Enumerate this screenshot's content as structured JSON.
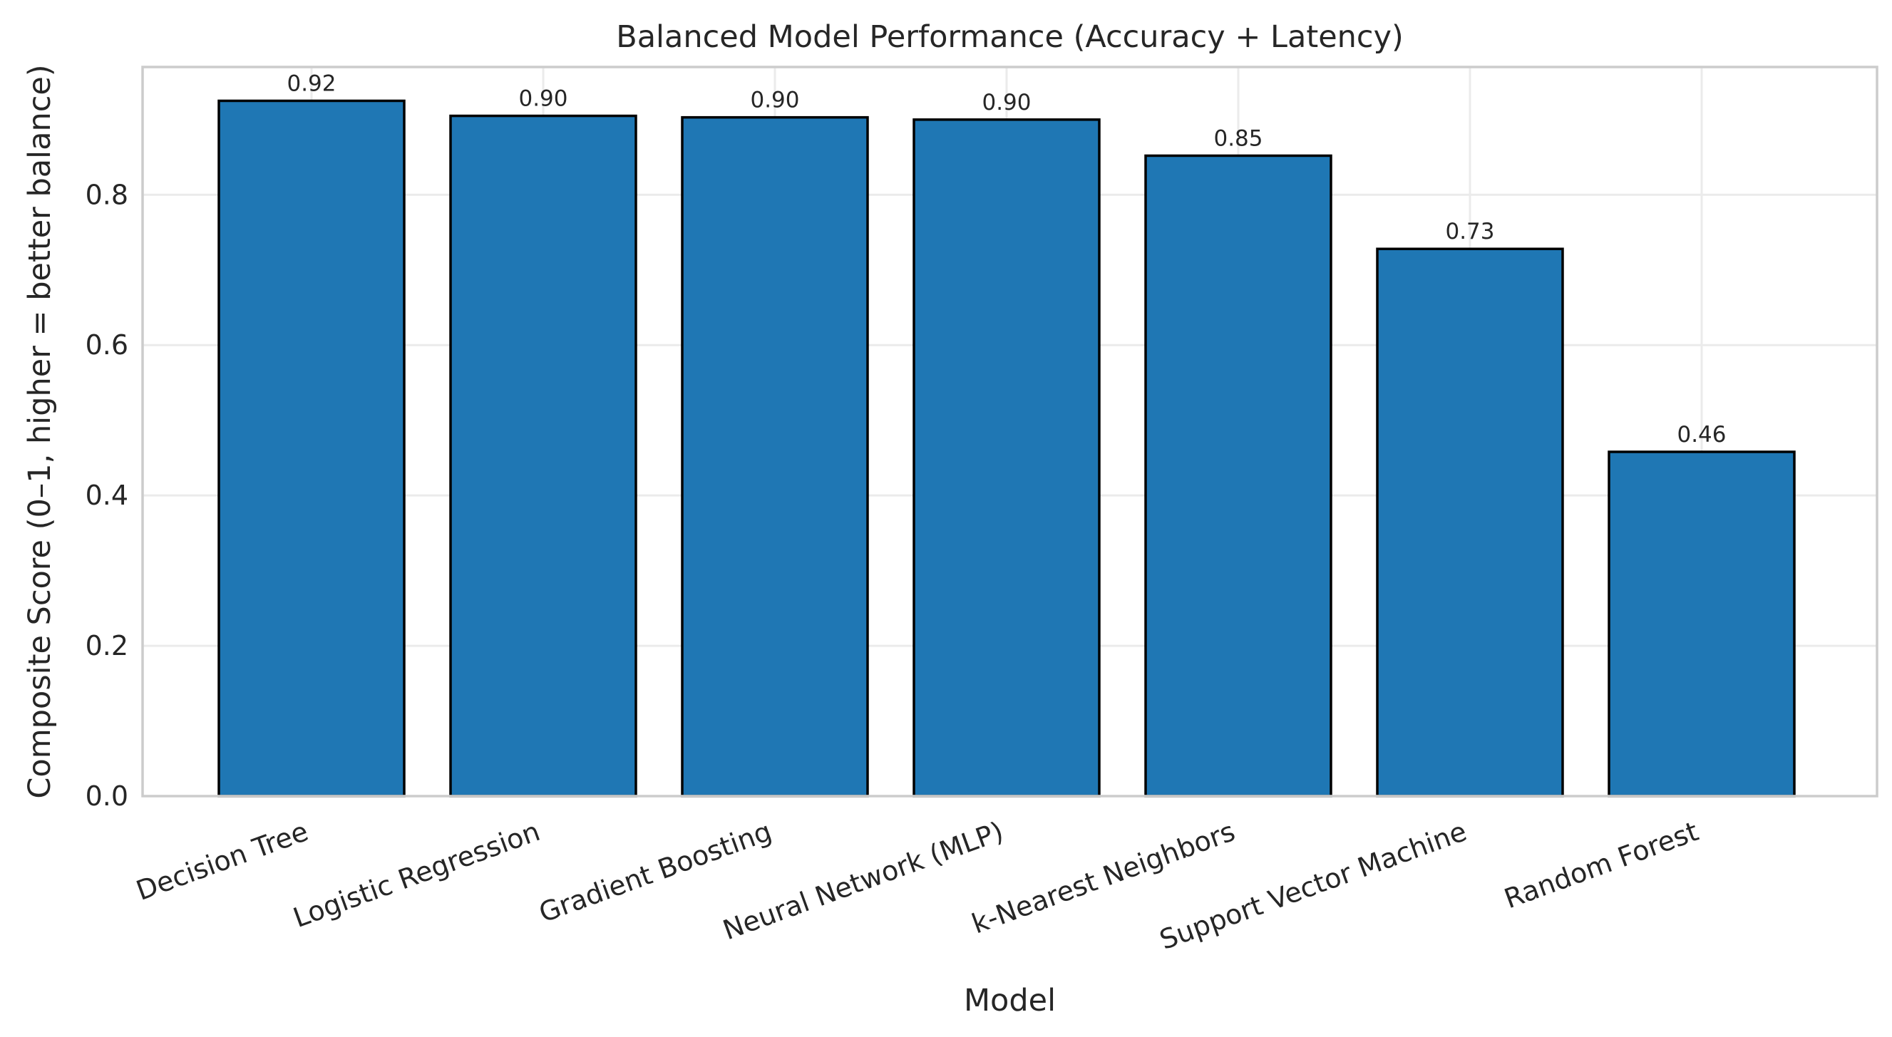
{
  "chart_data": {
    "type": "bar",
    "title": "Balanced Model Performance (Accuracy + Latency)",
    "xlabel": "Model",
    "ylabel": "Composite Score (0–1, higher = better balance)",
    "categories": [
      "Decision Tree",
      "Logistic Regression",
      "Gradient Boosting",
      "Neural Network (MLP)",
      "k-Nearest Neighbors",
      "Support Vector Machine",
      "Random Forest"
    ],
    "values": [
      0.925,
      0.905,
      0.903,
      0.9,
      0.852,
      0.728,
      0.458
    ],
    "value_labels": [
      "0.92",
      "0.90",
      "0.90",
      "0.90",
      "0.85",
      "0.73",
      "0.46"
    ],
    "ylim": [
      0,
      0.97
    ],
    "yticks": [
      0.0,
      0.2,
      0.4,
      0.6,
      0.8
    ],
    "ytick_labels": [
      "0.0",
      "0.2",
      "0.4",
      "0.6",
      "0.8"
    ],
    "grid": true,
    "colors": {
      "bar_fill": "#1f77b4",
      "bar_edge": "#000000",
      "grid": "#ebebeb",
      "spine": "#cccccc",
      "text": "#262626"
    }
  }
}
